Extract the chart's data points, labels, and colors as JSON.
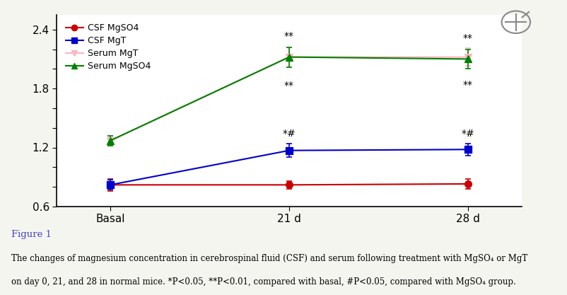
{
  "x_labels": [
    "Basal",
    "21 d",
    "28 d"
  ],
  "x_positions": [
    0,
    1,
    2
  ],
  "series": {
    "CSF MgSO4": {
      "values": [
        0.82,
        0.82,
        0.83
      ],
      "errors": [
        0.06,
        0.04,
        0.05
      ],
      "color": "#cc0000",
      "marker": "o",
      "linestyle": "-",
      "markersize": 7,
      "linewidth": 1.5
    },
    "CSF MgT": {
      "values": [
        0.82,
        1.17,
        1.18
      ],
      "errors": [
        0.05,
        0.07,
        0.06
      ],
      "color": "#0000cc",
      "marker": "s",
      "linestyle": "-",
      "markersize": 7,
      "linewidth": 1.5
    },
    "Serum MgT": {
      "values": [
        1.27,
        2.12,
        2.12
      ],
      "errors": [
        0.05,
        0.1,
        0.09
      ],
      "color": "#ffb6c1",
      "marker": "v",
      "linestyle": "-",
      "markersize": 7,
      "linewidth": 1.5
    },
    "Serum MgSO4": {
      "values": [
        1.27,
        2.12,
        2.1
      ],
      "errors": [
        0.05,
        0.1,
        0.1
      ],
      "color": "#008000",
      "marker": "^",
      "linestyle": "-",
      "markersize": 7,
      "linewidth": 1.5
    }
  },
  "annotations_21d": [
    "**",
    "**",
    "*#"
  ],
  "annotations_28d": [
    "**",
    "**",
    "*#"
  ],
  "annotation_series_21d": [
    "Serum MgSO4",
    "Serum MgT",
    "CSF MgT"
  ],
  "annotation_series_28d": [
    "Serum MgSO4",
    "Serum MgT",
    "CSF MgT"
  ],
  "ylim": [
    0.6,
    2.55
  ],
  "yticks": [
    0.6,
    0.8,
    1.0,
    1.2,
    1.4,
    1.6,
    1.8,
    2.0,
    2.2,
    2.4
  ],
  "ytick_labels": [
    "0.6",
    "",
    "",
    "1.2",
    "",
    "",
    "1.8",
    "",
    "",
    "2.4"
  ],
  "background_color": "#f5f5f0",
  "plot_bg_color": "#ffffff",
  "figure_caption": "Figure 1",
  "caption_text": "The changes of magnesium concentration in cerebrospinal fluid (CSF) and serum following treatment with MgSO₄ or MgT\non day 0, 21, and 28 in normal mice. *P<0.05, **P<0.01, compared with basal, #P<0.05, compared with MgSO₄ group.",
  "legend_order": [
    "CSF MgSO4",
    "CSF MgT",
    "Serum MgT",
    "Serum MgSO4"
  ]
}
